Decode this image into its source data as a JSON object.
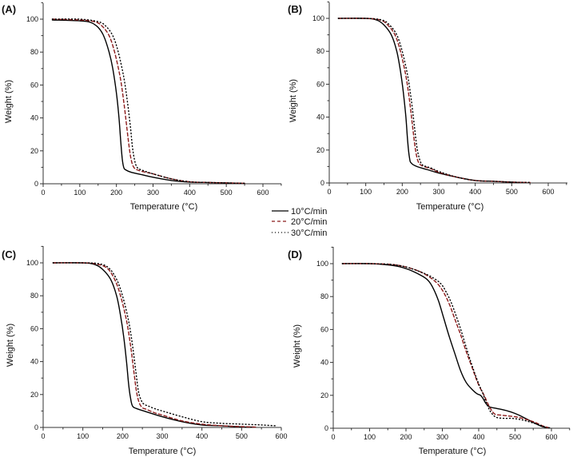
{
  "figure": {
    "legend": {
      "placement": "center",
      "entries": [
        {
          "label": "10°C/min",
          "style": "solid",
          "color": "#000000"
        },
        {
          "label": "20°C/min",
          "style": "dashed",
          "color": "#8b1a1a"
        },
        {
          "label": "30°C/min",
          "style": "dotted",
          "color": "#000000"
        }
      ]
    }
  },
  "chart_data": [
    {
      "type": "line",
      "panel_label": "(A)",
      "xlabel": "Temperature (°C)",
      "ylabel": "Weight (%)",
      "xlim": [
        0,
        650
      ],
      "ylim": [
        0,
        110
      ],
      "xticks": [
        0,
        100,
        200,
        300,
        400,
        500,
        600
      ],
      "yticks": [
        0,
        20,
        40,
        60,
        80,
        100
      ],
      "series": [
        {
          "name": "10°C/min",
          "x": [
            25,
            100,
            130,
            150,
            165,
            180,
            190,
            200,
            207,
            212,
            216,
            220,
            225,
            240,
            270,
            300,
            350,
            400,
            450,
            500,
            540
          ],
          "y": [
            99.5,
            99,
            98,
            95,
            90,
            80,
            70,
            55,
            40,
            25,
            15,
            10,
            8.5,
            7,
            5.5,
            4,
            2,
            1,
            0.8,
            0.5,
            0.3
          ]
        },
        {
          "name": "20°C/min",
          "x": [
            25,
            100,
            140,
            160,
            180,
            195,
            210,
            220,
            228,
            235,
            240,
            245,
            252,
            270,
            300,
            350,
            400,
            450,
            500,
            550
          ],
          "y": [
            100,
            99.5,
            98.5,
            96,
            90,
            80,
            65,
            50,
            35,
            22,
            15,
            11,
            9,
            7.5,
            6,
            3,
            1.2,
            0.8,
            0.5,
            0.3
          ]
        },
        {
          "name": "30°C/min",
          "x": [
            25,
            100,
            150,
            170,
            190,
            205,
            220,
            230,
            238,
            244,
            250,
            255,
            262,
            280,
            300,
            350,
            400,
            450,
            500,
            550
          ],
          "y": [
            100,
            100,
            98.5,
            96,
            90,
            80,
            65,
            50,
            35,
            22,
            14,
            10.5,
            9,
            7.5,
            6,
            3,
            1.2,
            0.8,
            0.5,
            0.3
          ]
        }
      ]
    },
    {
      "type": "line",
      "panel_label": "(B)",
      "xlabel": "Temperature (°C)",
      "ylabel": "Weight (%)",
      "xlim": [
        0,
        650
      ],
      "ylim": [
        0,
        110
      ],
      "xticks": [
        0,
        100,
        200,
        300,
        400,
        500,
        600
      ],
      "yticks": [
        0,
        20,
        40,
        60,
        80,
        100
      ],
      "series": [
        {
          "name": "10°C/min",
          "x": [
            25,
            100,
            130,
            150,
            170,
            185,
            195,
            203,
            210,
            215,
            220,
            225,
            240,
            270,
            300,
            350,
            400,
            450,
            500,
            520
          ],
          "y": [
            100,
            100,
            99,
            96,
            90,
            80,
            68,
            55,
            40,
            25,
            15,
            12,
            10,
            8,
            6,
            3.5,
            1.5,
            1,
            0.5,
            0.3
          ]
        },
        {
          "name": "20°C/min",
          "x": [
            25,
            100,
            140,
            160,
            180,
            195,
            210,
            220,
            228,
            235,
            242,
            250,
            260,
            280,
            300,
            350,
            400,
            450,
            500,
            550
          ],
          "y": [
            100,
            100,
            99,
            96,
            90,
            80,
            65,
            50,
            35,
            22,
            14,
            11,
            10,
            8.5,
            6.5,
            3.5,
            1.5,
            1,
            0.5,
            0.3
          ]
        },
        {
          "name": "30°C/min",
          "x": [
            25,
            100,
            145,
            165,
            185,
            200,
            215,
            225,
            233,
            240,
            248,
            255,
            265,
            280,
            300,
            350,
            400,
            450,
            500,
            550
          ],
          "y": [
            100,
            100,
            99,
            96,
            90,
            80,
            65,
            50,
            35,
            22,
            14,
            11,
            10,
            9,
            7,
            3.5,
            1.5,
            1,
            0.5,
            0.3
          ]
        }
      ]
    },
    {
      "type": "line",
      "panel_label": "(C)",
      "xlabel": "Temperature (°C)",
      "ylabel": "Weight (%)",
      "xlim": [
        0,
        600
      ],
      "ylim": [
        0,
        110
      ],
      "xticks": [
        0,
        100,
        200,
        300,
        400,
        500,
        600
      ],
      "yticks": [
        0,
        20,
        40,
        60,
        80,
        100
      ],
      "series": [
        {
          "name": "10°C/min",
          "x": [
            25,
            100,
            130,
            150,
            170,
            185,
            195,
            203,
            210,
            215,
            220,
            225,
            235,
            260,
            300,
            350,
            400,
            450,
            500,
            530
          ],
          "y": [
            100,
            100,
            99,
            96,
            90,
            80,
            68,
            55,
            40,
            27,
            18,
            13,
            11.5,
            9.5,
            6.5,
            3.5,
            1.5,
            1,
            0.3,
            0.2
          ]
        },
        {
          "name": "20°C/min",
          "x": [
            25,
            100,
            130,
            160,
            180,
            195,
            210,
            220,
            228,
            235,
            242,
            250,
            260,
            280,
            300,
            350,
            400,
            450,
            500,
            540
          ],
          "y": [
            100,
            100,
            99.5,
            97,
            90,
            80,
            65,
            50,
            35,
            22,
            15,
            12,
            11,
            9,
            7.5,
            4,
            2,
            1,
            0.5,
            0.2
          ]
        },
        {
          "name": "30°C/min",
          "x": [
            25,
            100,
            140,
            165,
            185,
            200,
            215,
            225,
            233,
            240,
            248,
            255,
            265,
            280,
            300,
            350,
            400,
            450,
            500,
            550,
            585
          ],
          "y": [
            100,
            100,
            99.5,
            97,
            90,
            80,
            65,
            50,
            35,
            22,
            16,
            14,
            13,
            11.5,
            10,
            6.5,
            3.5,
            2.5,
            2,
            1.5,
            1
          ]
        }
      ]
    },
    {
      "type": "line",
      "panel_label": "(D)",
      "xlabel": "Temperature (°C)",
      "ylabel": "Weight (%)",
      "xlim": [
        0,
        650
      ],
      "ylim": [
        0,
        110
      ],
      "xticks": [
        0,
        100,
        200,
        300,
        400,
        500,
        600
      ],
      "yticks": [
        0,
        20,
        40,
        60,
        80,
        100
      ],
      "series": [
        {
          "name": "10°C/min",
          "x": [
            25,
            100,
            160,
            200,
            240,
            260,
            275,
            290,
            305,
            320,
            335,
            350,
            365,
            380,
            395,
            405,
            412,
            420,
            430,
            450,
            480,
            500,
            520,
            550,
            575,
            595
          ],
          "y": [
            100,
            100,
            99,
            97,
            93,
            90,
            85,
            77,
            66,
            55,
            45,
            35,
            28,
            24,
            21,
            20,
            18,
            15,
            13,
            12,
            10.5,
            9,
            7,
            3.5,
            1,
            0.3
          ]
        },
        {
          "name": "20°C/min",
          "x": [
            25,
            100,
            160,
            200,
            240,
            270,
            290,
            305,
            320,
            335,
            350,
            365,
            380,
            395,
            405,
            415,
            425,
            435,
            445,
            460,
            480,
            500,
            520,
            550,
            575,
            590
          ],
          "y": [
            100,
            100,
            99.5,
            98,
            95,
            91,
            87,
            82,
            75,
            66,
            57,
            47,
            38,
            29,
            24,
            20,
            15,
            11,
            8.5,
            8,
            7.5,
            7,
            6,
            4,
            1.5,
            0.5
          ]
        },
        {
          "name": "30°C/min",
          "x": [
            25,
            100,
            160,
            200,
            240,
            270,
            295,
            310,
            325,
            340,
            355,
            370,
            385,
            400,
            410,
            420,
            430,
            440,
            450,
            470,
            490,
            510,
            530,
            560,
            580
          ],
          "y": [
            100,
            100,
            99.5,
            98,
            95,
            92,
            88,
            83,
            76,
            67,
            57,
            46,
            36,
            27,
            22,
            16,
            11,
            8,
            6.5,
            6,
            6,
            5.5,
            4.5,
            2.5,
            1
          ]
        }
      ]
    }
  ]
}
